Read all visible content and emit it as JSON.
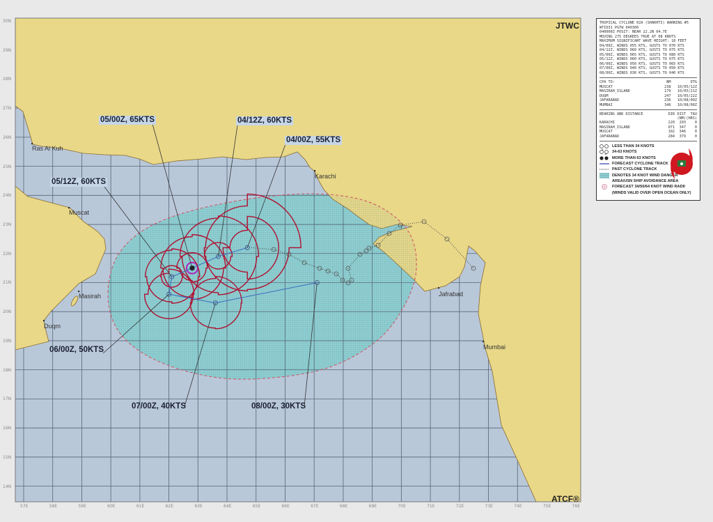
{
  "map": {
    "colors": {
      "ocean": "#b9c8d9",
      "land": "#e8d888",
      "coast": "#8a6a30",
      "grid": "#566577",
      "danger": "#8fcfd2",
      "danger_edge": "#d05060",
      "wind_radii": "#b01030",
      "forecast_track": "#3a6cc0",
      "past_track": "#444444",
      "radius64": "#b020c0"
    },
    "lat_labels": [
      "30N",
      "29N",
      "28N",
      "27N",
      "26N",
      "25N",
      "24N",
      "23N",
      "22N",
      "21N",
      "20N",
      "19N",
      "18N",
      "17N",
      "16N",
      "15N",
      "14N"
    ],
    "lon_labels": [
      "57E",
      "58E",
      "59E",
      "60E",
      "61E",
      "62E",
      "63E",
      "64E",
      "65E",
      "66E",
      "67E",
      "68E",
      "69E",
      "70E",
      "71E",
      "72E",
      "73E",
      "74E",
      "75E",
      "76E"
    ],
    "cities": [
      "Ras Al Kuh",
      "Muscat",
      "Masirah",
      "Duqm",
      "Karachi",
      "Jafrabad",
      "Mumbai"
    ],
    "track_labels": [
      "05/00Z, 65KTS",
      "04/12Z, 60KTS",
      "04/00Z, 55KTS",
      "05/12Z, 60KTS",
      "06/00Z, 50KTS",
      "07/00Z, 40KTS",
      "08/00Z, 30KTS"
    ],
    "forecast_points": [
      {
        "dtg": "04/00Z",
        "lat": 22.2,
        "lon": 64.7,
        "wind_kts": 55
      },
      {
        "dtg": "04/12Z",
        "lat": 21.9,
        "lon": 63.7,
        "wind_kts": 60
      },
      {
        "dtg": "05/00Z",
        "lat": 21.5,
        "lon": 62.8,
        "wind_kts": 65
      },
      {
        "dtg": "05/12Z",
        "lat": 21.2,
        "lon": 62.1,
        "wind_kts": 60
      },
      {
        "dtg": "06/00Z",
        "lat": 20.6,
        "lon": 62.0,
        "wind_kts": 50
      },
      {
        "dtg": "07/00Z",
        "lat": 20.3,
        "lon": 63.6,
        "wind_kts": 40
      },
      {
        "dtg": "08/00Z",
        "lat": 21.0,
        "lon": 67.1,
        "wind_kts": 30
      }
    ],
    "brand_top": "JTWC",
    "brand_bottom": "ATCF®"
  },
  "panel": {
    "header_lines": [
      "TROPICAL CYCLONE 02A (SHAKHTI) WARNING #5",
      "WTIO31 PGTW 040300",
      "040000Z POSIT: NEAR 22.2N 64.7E",
      "MOVING 275 DEGREES TRUE AT 08 KNOTS",
      "MAXIMUM SIGNIFICANT WAVE HEIGHT: 18 FEET",
      "04/00Z, WINDS 055 KTS, GUSTS TO 070 KTS",
      "04/12Z, WINDS 060 KTS, GUSTS TO 075 KTS",
      "05/00Z, WINDS 065 KTS, GUSTS TO 080 KTS",
      "05/12Z, WINDS 060 KTS, GUSTS TO 075 KTS",
      "06/00Z, WINDS 050 KTS, GUSTS TO 065 KTS",
      "07/00Z, WINDS 040 KTS, GUSTS TO 050 KTS",
      "08/00Z, WINDS 030 KTS, GUSTS TO 040 KTS"
    ],
    "cpa": {
      "headers": [
        "CPA TO:",
        "NM",
        "DTG"
      ],
      "rows": [
        [
          "MUSCAT",
          "238",
          "10/05/12Z"
        ],
        [
          "MASIRAH_ISLAND",
          "179",
          "10/05/21Z"
        ],
        [
          "DUQM",
          "247",
          "10/05/22Z"
        ],
        [
          "JAFARABAD",
          "236",
          "10/08/00Z"
        ],
        [
          "MUMBAI",
          "346",
          "10/08/00Z"
        ]
      ]
    },
    "bearing": {
      "headers": [
        "BEARING AND DISTANCE",
        "DIR",
        "DIST (NM)",
        "TAU (HRS)"
      ],
      "rows": [
        [
          "KARACHI",
          "220",
          "203",
          "0"
        ],
        [
          "MASIRAH_ISLAND",
          "071",
          "347",
          "0"
        ],
        [
          "MUSCAT",
          "102",
          "346",
          "0"
        ],
        [
          "JAFARABAD",
          "284",
          "379",
          "0"
        ]
      ]
    },
    "legend": [
      {
        "icon": "less-than-34-knots-icon",
        "label": "LESS THAN 34 KNOTS"
      },
      {
        "icon": "34-63-knots-icon",
        "label": "34-63 KNOTS"
      },
      {
        "icon": "more-than-63-knots-icon",
        "label": "MORE THAN 63 KNOTS"
      },
      {
        "icon": "forecast-track-icon",
        "label": "FORECAST CYCLONE TRACK"
      },
      {
        "icon": "past-track-icon",
        "label": "PAST CYCLONE TRACK"
      },
      {
        "icon": "danger-area-icon",
        "label": "DENOTES 34 KNOT WIND DANGER"
      },
      {
        "icon": "",
        "label": "AREA/USN SHIP AVOIDANCE AREA"
      },
      {
        "icon": "wind-radii-icon",
        "label": "FORECAST 34/50/64 KNOT WIND RADII"
      },
      {
        "icon": "",
        "label": "(WINDS VALID OVER OPEN OCEAN ONLY)"
      }
    ]
  }
}
